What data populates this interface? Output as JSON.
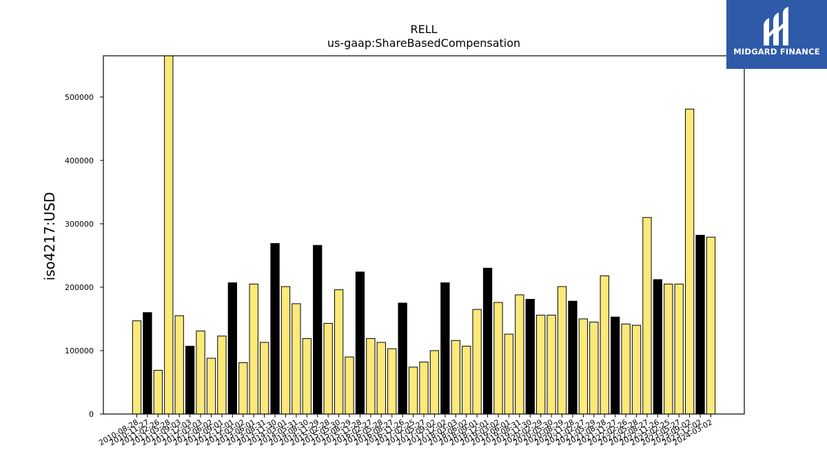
{
  "chart_data": {
    "type": "bar",
    "title": "RELL",
    "subtitle": "us-gaap:ShareBasedCompensation",
    "xlabel": "",
    "ylabel": "iso4217:USD",
    "ylim": [
      0,
      565000
    ],
    "yticks": [
      0,
      100000,
      200000,
      300000,
      400000,
      500000
    ],
    "grid": false,
    "categories": [
      "2010-08-28",
      "2010-11-27",
      "2011-02-26",
      "2011-05-28",
      "2011-09-03",
      "2011-12-03",
      "2012-03-03",
      "2012-06-02",
      "2012-09-01",
      "2012-12-01",
      "2013-03-02",
      "2013-06-01",
      "2013-08-31",
      "2013-11-30",
      "2014-03-01",
      "2014-05-31",
      "2014-08-30",
      "2014-11-29",
      "2015-02-28",
      "2015-05-30",
      "2015-08-29",
      "2015-11-28",
      "2016-02-27",
      "2016-05-28",
      "2016-08-27",
      "2016-11-26",
      "2017-02-25",
      "2017-05-27",
      "2017-09-02",
      "2017-12-02",
      "2018-03-03",
      "2018-06-02",
      "2018-09-01",
      "2018-12-01",
      "2019-03-02",
      "2019-06-01",
      "2019-08-31",
      "2019-11-30",
      "2020-02-29",
      "2020-05-30",
      "2020-08-29",
      "2020-11-28",
      "2021-02-27",
      "2021-05-29",
      "2021-08-28",
      "2021-11-27",
      "2022-02-26",
      "2022-05-28",
      "2022-08-27",
      "2022-11-26",
      "2023-02-25",
      "2023-05-27",
      "2023-09-02",
      "2023-12-02",
      "2024-03-02"
    ],
    "values": [
      147000,
      160000,
      69000,
      565000,
      155000,
      107000,
      131000,
      88000,
      123000,
      207000,
      81000,
      205000,
      113000,
      269000,
      201000,
      174000,
      119000,
      266000,
      143000,
      196000,
      90000,
      224000,
      119000,
      113000,
      103000,
      175000,
      74000,
      82000,
      100000,
      207000,
      116000,
      107000,
      165000,
      230000,
      176000,
      126000,
      188000,
      181000,
      156000,
      156000,
      201000,
      178000,
      150000,
      145000,
      218000,
      153000,
      142000,
      140000,
      310000,
      212000,
      205000,
      205000,
      481000,
      282000,
      279000
    ],
    "bar_colors": [
      "#fde97a",
      "#000000",
      "#fde97a",
      "#fde97a",
      "#fde97a",
      "#000000",
      "#fde97a",
      "#fde97a",
      "#fde97a",
      "#000000",
      "#fde97a",
      "#fde97a",
      "#fde97a",
      "#000000",
      "#fde97a",
      "#fde97a",
      "#fde97a",
      "#000000",
      "#fde97a",
      "#fde97a",
      "#fde97a",
      "#000000",
      "#fde97a",
      "#fde97a",
      "#fde97a",
      "#000000",
      "#fde97a",
      "#fde97a",
      "#fde97a",
      "#000000",
      "#fde97a",
      "#fde97a",
      "#fde97a",
      "#000000",
      "#fde97a",
      "#fde97a",
      "#fde97a",
      "#000000",
      "#fde97a",
      "#fde97a",
      "#fde97a",
      "#000000",
      "#fde97a",
      "#fde97a",
      "#fde97a",
      "#000000",
      "#fde97a",
      "#fde97a",
      "#fde97a",
      "#000000",
      "#fde97a",
      "#fde97a",
      "#fde97a",
      "#000000",
      "#fde97a"
    ]
  },
  "logo": {
    "text": "MIDGARD FINANCE",
    "icon": "midgard-logo-icon",
    "background": "#2f5aa8"
  }
}
